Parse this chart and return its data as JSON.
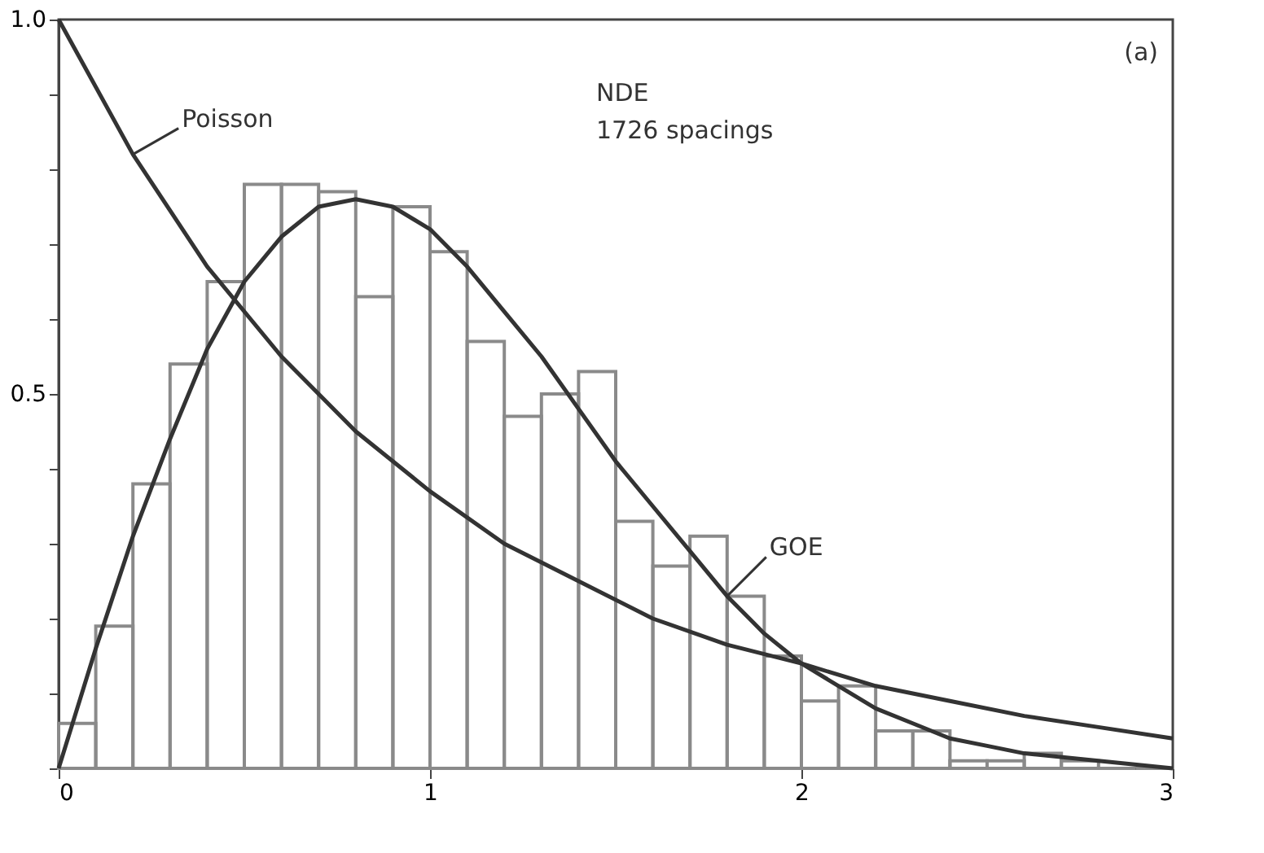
{
  "chart_data": {
    "type": "histogram",
    "bins": [
      0,
      0.1,
      0.2,
      0.3,
      0.4,
      0.5,
      0.6,
      0.7,
      0.8,
      0.9,
      1.0,
      1.1,
      1.2,
      1.3,
      1.4,
      1.5,
      1.6,
      1.7,
      1.8,
      1.9,
      2.0,
      2.1,
      2.2,
      2.3,
      2.4,
      2.5,
      2.6,
      2.7,
      2.8,
      2.9,
      3.0
    ],
    "values": [
      0.06,
      0.19,
      0.38,
      0.54,
      0.65,
      0.78,
      0.78,
      0.77,
      0.63,
      0.75,
      0.69,
      0.57,
      0.47,
      0.5,
      0.53,
      0.33,
      0.27,
      0.31,
      0.23,
      0.15,
      0.09,
      0.11,
      0.05,
      0.05,
      0.01,
      0.01,
      0.02,
      0.01,
      0,
      0
    ],
    "color": "#8a8a8a",
    "series": [
      {
        "name": "Poisson",
        "type": "line",
        "color": "#333333",
        "x": [
          0,
          0.2,
          0.4,
          0.6,
          0.8,
          1.0,
          1.2,
          1.4,
          1.6,
          1.8,
          2.0,
          2.2,
          2.4,
          2.6,
          2.8,
          3.0
        ],
        "values": [
          1.0,
          0.82,
          0.67,
          0.55,
          0.45,
          0.37,
          0.3,
          0.25,
          0.2,
          0.165,
          0.14,
          0.11,
          0.09,
          0.07,
          0.055,
          0.04
        ]
      },
      {
        "name": "GOE",
        "type": "line",
        "color": "#333333",
        "x": [
          0,
          0.1,
          0.2,
          0.3,
          0.4,
          0.5,
          0.6,
          0.7,
          0.8,
          0.9,
          1.0,
          1.1,
          1.2,
          1.3,
          1.4,
          1.5,
          1.6,
          1.7,
          1.8,
          1.9,
          2.0,
          2.1,
          2.2,
          2.3,
          2.4,
          2.5,
          2.6,
          2.8,
          3.0
        ],
        "values": [
          0,
          0.16,
          0.31,
          0.44,
          0.56,
          0.65,
          0.71,
          0.75,
          0.76,
          0.75,
          0.72,
          0.67,
          0.61,
          0.55,
          0.48,
          0.41,
          0.35,
          0.29,
          0.23,
          0.18,
          0.14,
          0.11,
          0.08,
          0.06,
          0.04,
          0.03,
          0.02,
          0.01,
          0
        ]
      }
    ],
    "annotations": [
      "NDE",
      "1726 spacings",
      "(a)"
    ],
    "xlim": [
      0,
      3
    ],
    "xticks": [
      0,
      1,
      2,
      3
    ],
    "ylim": [
      0,
      1
    ],
    "yticks": [
      {
        "value": 0,
        "label": null
      },
      {
        "value": 0.1,
        "label": null
      },
      {
        "value": 0.2,
        "label": null
      },
      {
        "value": 0.3,
        "label": null
      },
      {
        "value": 0.4,
        "label": null
      },
      {
        "value": 0.5,
        "label": "0.5"
      },
      {
        "value": 0.6,
        "label": null
      },
      {
        "value": 0.7,
        "label": null
      },
      {
        "value": 0.8,
        "label": null
      },
      {
        "value": 0.9,
        "label": null
      },
      {
        "value": 1,
        "label": "1.0"
      }
    ],
    "grid": false,
    "marker": "none",
    "line_style": "solid"
  }
}
